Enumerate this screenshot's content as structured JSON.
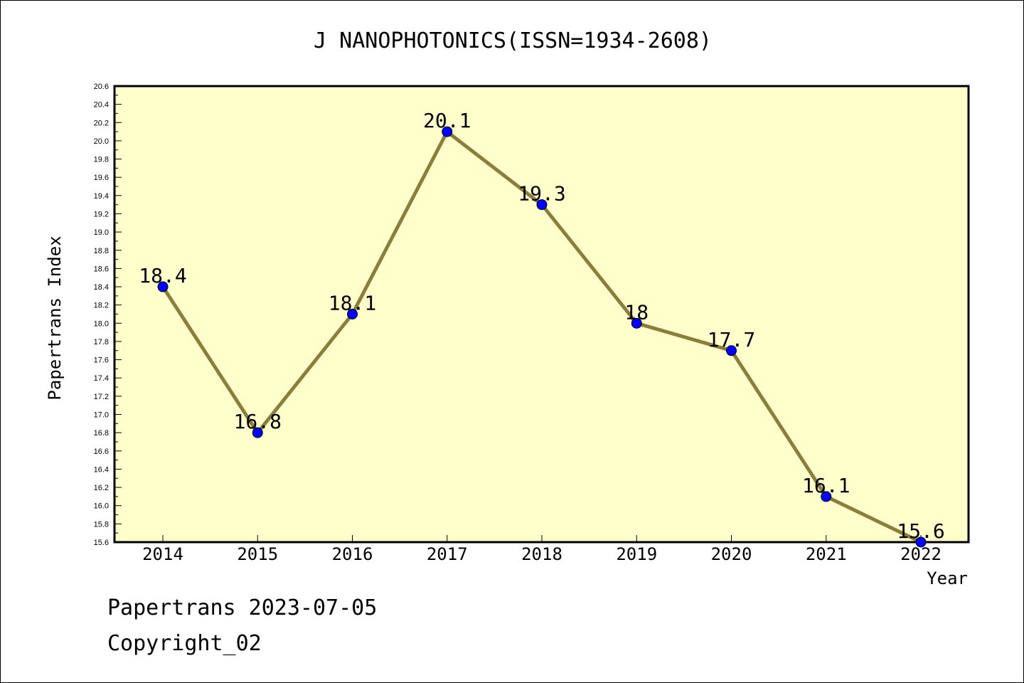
{
  "chart_data": {
    "type": "line",
    "title": "J NANOPHOTONICS(ISSN=1934-2608)",
    "xlabel": "Year",
    "ylabel": "Papertrans Index",
    "categories": [
      "2014",
      "2015",
      "2016",
      "2017",
      "2018",
      "2019",
      "2020",
      "2021",
      "2022"
    ],
    "series": [
      {
        "values": [
          18.4,
          16.8,
          18.1,
          20.1,
          19.3,
          18.0,
          17.7,
          16.1,
          15.6
        ],
        "labels": [
          "18.4",
          "16.8",
          "18.1",
          "20.1",
          "19.3",
          "18",
          "17.7",
          "16.1",
          "15.6"
        ]
      }
    ],
    "ylim": [
      15.6,
      20.6
    ],
    "yticks": [
      "15.6",
      "15.8",
      "16.0",
      "16.2",
      "16.4",
      "16.6",
      "16.8",
      "17.0",
      "17.2",
      "17.4",
      "17.6",
      "17.8",
      "18.0",
      "18.2",
      "18.4",
      "18.6",
      "18.8",
      "19.0",
      "19.2",
      "19.4",
      "19.6",
      "19.8",
      "20.0",
      "20.2",
      "20.4",
      "20.6"
    ],
    "grid": false,
    "colors": {
      "plot_background": "#ffffcc",
      "line": "#8b7d3a",
      "marker": "#0000ff"
    }
  },
  "footer": {
    "line1": "Papertrans 2023-07-05",
    "line2": "Copyright_02"
  }
}
